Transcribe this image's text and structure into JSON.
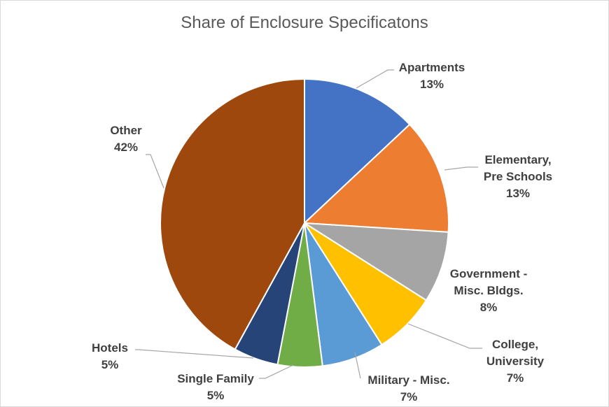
{
  "chart_data": {
    "type": "pie",
    "title": "Share of Enclosure Specificatons",
    "slices": [
      {
        "label": [
          "Apartments"
        ],
        "percent_label": "13%",
        "value": 13,
        "color": "#4472C4"
      },
      {
        "label": [
          "Elementary,",
          "Pre Schools"
        ],
        "percent_label": "13%",
        "value": 13,
        "color": "#ED7D31"
      },
      {
        "label": [
          "Government -",
          "Misc. Bldgs."
        ],
        "percent_label": "8%",
        "value": 8,
        "color": "#A5A5A5"
      },
      {
        "label": [
          "College,",
          "University"
        ],
        "percent_label": "7%",
        "value": 7,
        "color": "#FFC000"
      },
      {
        "label": [
          "Military - Misc."
        ],
        "percent_label": "7%",
        "value": 7,
        "color": "#5B9BD5"
      },
      {
        "label": [
          "Single Family"
        ],
        "percent_label": "5%",
        "value": 5,
        "color": "#70AD47"
      },
      {
        "label": [
          "Hotels"
        ],
        "percent_label": "5%",
        "value": 5,
        "color": "#264478"
      },
      {
        "label": [
          "Other"
        ],
        "percent_label": "42%",
        "value": 42,
        "color": "#9E480E"
      }
    ]
  }
}
